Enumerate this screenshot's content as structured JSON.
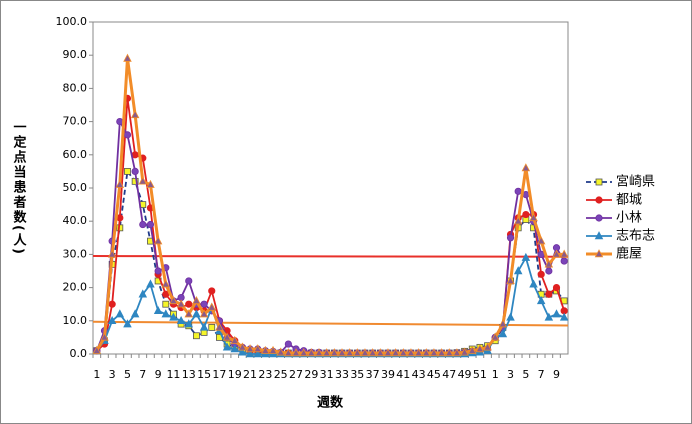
{
  "chart_data": {
    "type": "line",
    "ylabel": "一定点当患者数(人)",
    "xlabel": "週数",
    "categories": [
      "1",
      null,
      "3",
      null,
      "5",
      null,
      "7",
      null,
      "9",
      null,
      "11",
      null,
      "13",
      null,
      "15",
      null,
      "17",
      null,
      "19",
      null,
      "21",
      null,
      "23",
      null,
      "25",
      null,
      "27",
      null,
      "29",
      null,
      "31",
      null,
      "33",
      null,
      "35",
      null,
      "37",
      null,
      "39",
      null,
      "41",
      null,
      "43",
      null,
      "45",
      null,
      "47",
      null,
      "49",
      null,
      "51",
      null,
      "1",
      null,
      "3",
      null,
      "5",
      null,
      "7",
      null,
      "9",
      null
    ],
    "ylim": [
      0,
      100
    ],
    "yticks": [
      {
        "value": 0,
        "label": "0.0"
      },
      {
        "value": 10,
        "label": "10.0"
      },
      {
        "value": 20,
        "label": "20.0"
      },
      {
        "value": 30,
        "label": "30.0"
      },
      {
        "value": 40,
        "label": "40.0"
      },
      {
        "value": 50,
        "label": "50.0"
      },
      {
        "value": 60,
        "label": "60.0"
      },
      {
        "value": 70,
        "label": "70.0"
      },
      {
        "value": 80,
        "label": "80.0"
      },
      {
        "value": 90,
        "label": "90.0"
      },
      {
        "value": 100,
        "label": "100.0"
      }
    ],
    "reference_lines": [
      {
        "color": "#e8302a",
        "values": [
          29.5,
          29.3
        ]
      },
      {
        "color": "#f08a30",
        "values": [
          9.7,
          8.6
        ]
      }
    ],
    "series": [
      {
        "name": "宮崎県",
        "color": "#1f3a8a",
        "dash": true,
        "marker": "square",
        "marker_color": "#f5f52a",
        "values": [
          1,
          4,
          27,
          38,
          55,
          52,
          45,
          34,
          22,
          15,
          12,
          9,
          8.5,
          5.5,
          6.5,
          8,
          5,
          3,
          2,
          1.5,
          1,
          0.8,
          0.5,
          0.3,
          0.3,
          0.3,
          0.3,
          0.3,
          0.3,
          0.3,
          0.3,
          0.3,
          0.3,
          0.3,
          0.3,
          0.3,
          0.3,
          0.3,
          0.3,
          0.3,
          0.3,
          0.3,
          0.3,
          0.3,
          0.3,
          0.3,
          0.3,
          0.4,
          0.8,
          1.5,
          2,
          2.5,
          4,
          8,
          22,
          38,
          40.5,
          38,
          18,
          18,
          19,
          16
        ]
      },
      {
        "name": "都城",
        "color": "#e02020",
        "marker": "circle",
        "marker_color": "#e02020",
        "values": [
          1,
          3,
          15,
          41,
          77,
          60,
          59,
          44,
          24,
          18,
          15,
          14,
          15,
          14,
          13,
          19,
          10,
          7,
          4,
          2,
          1,
          1,
          0.5,
          0.2,
          0.2,
          0.2,
          0.2,
          0.2,
          0.2,
          0.2,
          0.2,
          0.2,
          0.2,
          0.2,
          0.2,
          0.2,
          0.2,
          0.2,
          0.2,
          0.2,
          0.2,
          0.2,
          0.2,
          0.2,
          0.2,
          0.2,
          0.2,
          0.3,
          0.5,
          0.8,
          1,
          1.5,
          5,
          8,
          36,
          41,
          42,
          42,
          24,
          18,
          20,
          13
        ]
      },
      {
        "name": "小林",
        "color": "#7030a0",
        "marker": "circle",
        "marker_color": "#7a44b8",
        "values": [
          1,
          7,
          34,
          70,
          66,
          55,
          39,
          39,
          25,
          26,
          16,
          17,
          22,
          15,
          15,
          13,
          10,
          5,
          3,
          2,
          1.5,
          1.5,
          1,
          0.8,
          0.5,
          3,
          1.5,
          1,
          0.5,
          0.5,
          0.3,
          0.3,
          0.3,
          0.3,
          0.3,
          0.3,
          0.3,
          0.3,
          0.3,
          0.3,
          0.3,
          0.3,
          0.3,
          0.3,
          0.3,
          0.3,
          0.3,
          0.3,
          0.5,
          0.8,
          1,
          1.5,
          5,
          8,
          35,
          49,
          48,
          40,
          30,
          25,
          32,
          28
        ]
      },
      {
        "name": "志布志",
        "color": "#2e86c1",
        "marker": "triangle",
        "marker_color": "#2e86c1",
        "values": [
          1,
          4,
          10,
          12,
          9,
          12,
          18,
          21,
          13,
          12,
          11,
          10,
          9,
          12,
          8,
          14,
          7,
          2,
          1.5,
          0.5,
          0,
          0,
          0,
          0,
          0,
          0,
          0,
          0,
          0,
          0,
          0,
          0,
          0,
          0,
          0,
          0,
          0,
          0,
          0,
          0,
          0,
          0,
          0,
          0,
          0,
          0,
          0,
          0,
          0,
          0.3,
          0.5,
          1,
          5,
          6,
          11,
          25,
          29,
          21,
          16,
          11,
          12,
          11
        ]
      },
      {
        "name": "鹿屋",
        "color": "#f28c28",
        "width": 3,
        "marker": "triangle",
        "marker_color": "#8a5a8a",
        "values": [
          1,
          5,
          30,
          51,
          89,
          72,
          52,
          51,
          34,
          21,
          16,
          15,
          12,
          16,
          12,
          14,
          8,
          5,
          4,
          2,
          1.5,
          1.5,
          1,
          1,
          0.5,
          0.3,
          0.3,
          0.3,
          0.3,
          0.3,
          0.3,
          0.3,
          0.3,
          0.3,
          0.3,
          0.3,
          0.3,
          0.3,
          0.3,
          0.3,
          0.3,
          0.3,
          0.3,
          0.3,
          0.3,
          0.3,
          0.3,
          0.3,
          0.5,
          1,
          1.5,
          2,
          5,
          9,
          22,
          40,
          56,
          41,
          34,
          27,
          30,
          30
        ]
      }
    ]
  }
}
